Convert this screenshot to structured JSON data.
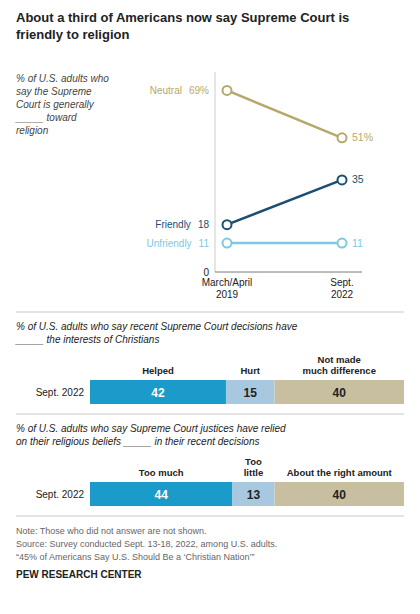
{
  "chart_data": [
    {
      "type": "line",
      "title": "About a third of Americans now say Supreme Court is\nfriendly to religion",
      "subtitle": "% of U.S. adults who\nsay the Supreme\nCourt is generally\n_____ toward\nreligion",
      "categories": [
        "March/April\n2019",
        "Sept.\n2022"
      ],
      "series": [
        {
          "name": "Neutral",
          "color": "#b5a96a",
          "values": [
            69,
            51
          ],
          "value_labels": [
            "69%",
            "51%"
          ],
          "marker": "circle"
        },
        {
          "name": "Friendly",
          "color": "#1a4f72",
          "values": [
            18,
            35
          ],
          "marker": "circle"
        },
        {
          "name": "Unfriendly",
          "color": "#7ec8e3",
          "values": [
            11,
            11
          ],
          "marker": "circle"
        }
      ],
      "ylim": [
        0,
        76
      ],
      "yticks": [
        0
      ],
      "data_labels": true
    },
    {
      "type": "bar",
      "orientation": "horizontal",
      "stacked": true,
      "subtitle": "% of U.S. adults who say recent Supreme Court decisions have\n_____ the interests of Christians",
      "categories": [
        "Sept. 2022"
      ],
      "series": [
        {
          "name": "Helped",
          "color": "#1a9bc9",
          "values": [
            42
          ]
        },
        {
          "name": "Hurt",
          "color": "#a8c8e0",
          "values": [
            15
          ]
        },
        {
          "name": "Not made\nmuch difference",
          "color": "#c8bfa0",
          "values": [
            40
          ]
        }
      ],
      "xlim": [
        0,
        97
      ],
      "data_labels": true,
      "tick_labels": "y"
    },
    {
      "type": "bar",
      "orientation": "horizontal",
      "stacked": true,
      "subtitle": "% of U.S. adults who say Supreme Court justices have relied\non their religious beliefs _____ in their recent decisions",
      "categories": [
        "Sept. 2022"
      ],
      "series": [
        {
          "name": "Too much",
          "color": "#1a9bc9",
          "values": [
            44
          ]
        },
        {
          "name": "Too\nlittle",
          "color": "#a8c8e0",
          "values": [
            13
          ]
        },
        {
          "name": "About the right amount",
          "color": "#c8bfa0",
          "values": [
            40
          ]
        }
      ],
      "xlim": [
        0,
        97
      ],
      "data_labels": true,
      "tick_labels": "y",
      "annotations": [
        "Note: Those who did not answer are not shown.",
        "Source: Survey conducted Sept. 13-18, 2022, among U.S. adults.",
        "“45% of Americans Say U.S. Should Be a ‘Christian Nation’”",
        "PEW RESEARCH CENTER"
      ]
    }
  ]
}
